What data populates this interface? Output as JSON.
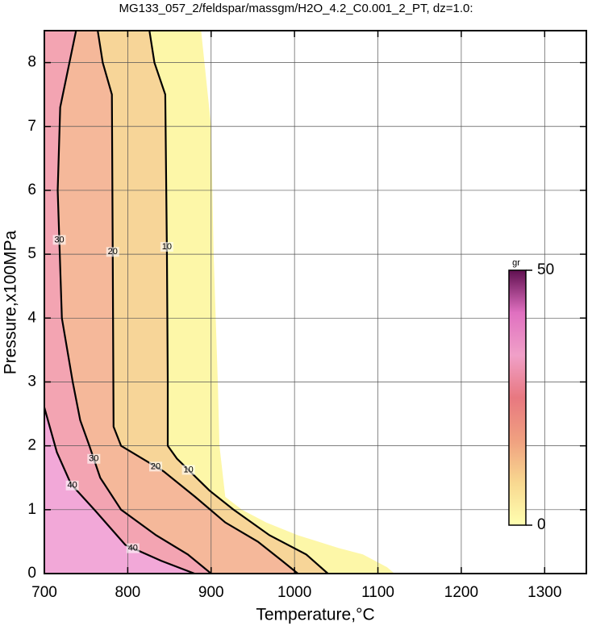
{
  "chart_data": {
    "type": "contour",
    "title": "MG133_057_2/feldspar/massgm/H2O_4.2_C0.001_2_PT, dz=1.0:",
    "x_label": "Temperature,°C",
    "y_label": "Pressure,x100MPa",
    "xlim": [
      700,
      1350
    ],
    "ylim": [
      0,
      8.5
    ],
    "xticks": [
      700,
      800,
      900,
      1000,
      1100,
      1200,
      1300
    ],
    "yticks": [
      0,
      1,
      2,
      3,
      4,
      5,
      6,
      7,
      8
    ],
    "grid": true,
    "contours": [
      {
        "level": 0,
        "fill": "#fdf7a8",
        "line": false,
        "x": [
          888,
          900,
          903,
          908,
          910,
          917,
          937,
          966,
          1004,
          1053,
          1082,
          1111,
          1120
        ],
        "y": [
          8.5,
          7.0,
          5.0,
          3.0,
          2.0,
          1.2,
          1.0,
          0.8,
          0.6,
          0.4,
          0.3,
          0.1,
          0
        ]
      },
      {
        "level": 10,
        "fill": "#f7d598",
        "line": true,
        "x": [
          826,
          832,
          845,
          847,
          848,
          848,
          859,
          898,
          927,
          970,
          1014,
          1040
        ],
        "y": [
          8.5,
          8.0,
          7.5,
          5.0,
          3.0,
          2.0,
          1.8,
          1.3,
          1.0,
          0.6,
          0.3,
          0
        ]
      },
      {
        "level": 20,
        "fill": "#f5b89a",
        "line": true,
        "x": [
          764,
          770,
          781,
          782,
          783,
          792,
          843,
          881,
          917,
          956,
          985,
          1004
        ],
        "y": [
          8.5,
          8.0,
          7.5,
          5.0,
          2.3,
          2.0,
          1.6,
          1.2,
          0.8,
          0.5,
          0.2,
          0
        ]
      },
      {
        "level": 30,
        "fill": "#f3a4b2",
        "line": true,
        "x": [
          738,
          719,
          716,
          721,
          734,
          743,
          754,
          767,
          792,
          834,
          872,
          900
        ],
        "y": [
          8.5,
          7.3,
          6.0,
          4.0,
          3.0,
          2.4,
          2.0,
          1.5,
          1.0,
          0.6,
          0.3,
          0
        ]
      },
      {
        "level": 40,
        "fill": "#f2a8d8",
        "line": true,
        "x": [
          700,
          715,
          732,
          760,
          797,
          840,
          880
        ],
        "y": [
          2.6,
          1.9,
          1.4,
          1.0,
          0.45,
          0.2,
          0
        ]
      }
    ],
    "colorbar": {
      "title": "gr",
      "lim": [
        0,
        50
      ],
      "ticks": [
        0,
        50
      ],
      "colormap": [
        "#ffffb0",
        "#f8d890",
        "#f0a080",
        "#e87880",
        "#f0a0c8",
        "#e070c0",
        "#601050"
      ]
    }
  }
}
